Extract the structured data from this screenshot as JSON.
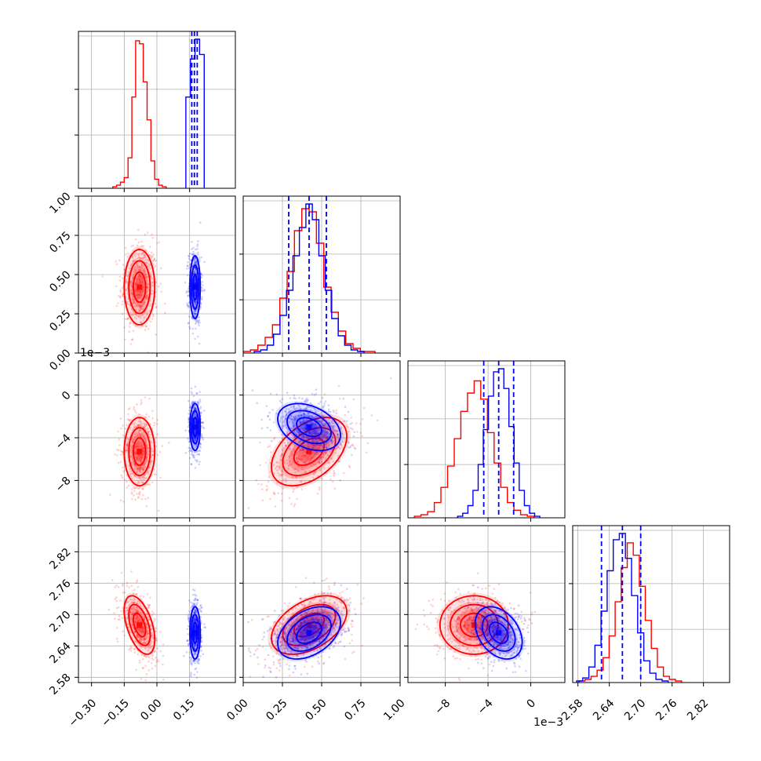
{
  "chart_data": {
    "type": "corner",
    "colors": {
      "red": "#ff0000",
      "blue": "#0000ff"
    },
    "grid": true,
    "parameters": [
      {
        "range": [
          -0.36,
          0.36
        ],
        "ticks": [
          -0.3,
          -0.15,
          0.0,
          0.15
        ],
        "tick_labels": [
          "−0.30",
          "−0.15",
          "0.00",
          "0.15"
        ],
        "offset": ""
      },
      {
        "range": [
          0.0,
          1.0
        ],
        "ticks": [
          0.0,
          0.25,
          0.5,
          0.75,
          1.0
        ],
        "tick_labels": [
          "0.00",
          "0.25",
          "0.50",
          "0.75",
          "1.00"
        ],
        "offset": ""
      },
      {
        "range": [
          -11.5,
          3.2
        ],
        "ticks": [
          -8,
          -4,
          0
        ],
        "tick_labels": [
          "−8",
          "−4",
          "0"
        ],
        "offset": "1e−3"
      },
      {
        "range": [
          2.57,
          2.87
        ],
        "ticks": [
          2.58,
          2.64,
          2.7,
          2.76,
          2.82
        ],
        "tick_labels": [
          "2.58",
          "2.64",
          "2.70",
          "2.76",
          "2.82"
        ],
        "offset": ""
      }
    ],
    "series": [
      {
        "color": "red",
        "means": [
          -0.08,
          0.42,
          -5.3,
          2.68
        ],
        "stds": [
          0.035,
          0.12,
          1.6,
          0.028
        ],
        "histogram_counts": [
          [
            1,
            2,
            4,
            7,
            20,
            60,
            97,
            95,
            70,
            45,
            18,
            6,
            2,
            1
          ],
          [
            1,
            2,
            5,
            10,
            18,
            35,
            52,
            78,
            92,
            90,
            70,
            42,
            26,
            14,
            6,
            3,
            1,
            1
          ],
          [
            1,
            2,
            4,
            10,
            20,
            34,
            52,
            70,
            82,
            90,
            78,
            56,
            36,
            20,
            10,
            5,
            2,
            1
          ],
          [
            1,
            2,
            4,
            8,
            16,
            30,
            52,
            74,
            90,
            82,
            62,
            40,
            22,
            10,
            4,
            2,
            1
          ]
        ]
      },
      {
        "color": "blue",
        "means": [
          0.175,
          0.42,
          -3.0,
          2.665
        ],
        "stds": [
          0.012,
          0.1,
          1.1,
          0.025
        ],
        "quantiles": [
          [
            0.16,
            0.172,
            0.185
          ],
          [
            0.29,
            0.42,
            0.53
          ],
          [
            -4.4,
            -3.0,
            -1.6
          ],
          [
            2.625,
            2.665,
            2.7
          ]
        ],
        "histogram_counts": [
          [
            60,
            85,
            98,
            88
          ],
          [
            1,
            2,
            5,
            12,
            24,
            40,
            62,
            80,
            95,
            85,
            62,
            40,
            22,
            11,
            5,
            2,
            1
          ],
          [
            1,
            3,
            8,
            18,
            35,
            58,
            80,
            96,
            98,
            85,
            60,
            36,
            18,
            8,
            3,
            1
          ],
          [
            1,
            3,
            10,
            24,
            46,
            72,
            92,
            96,
            80,
            56,
            32,
            14,
            6,
            2,
            1
          ]
        ]
      }
    ]
  }
}
